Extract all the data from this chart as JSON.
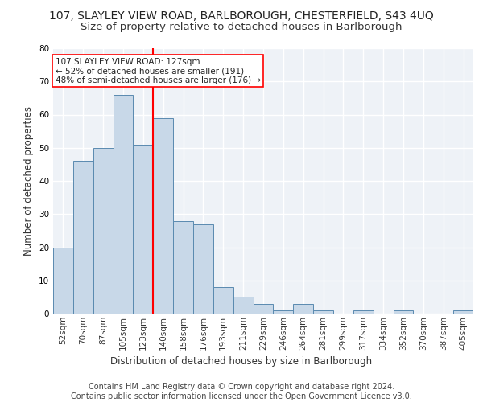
{
  "title1": "107, SLAYLEY VIEW ROAD, BARLBOROUGH, CHESTERFIELD, S43 4UQ",
  "title2": "Size of property relative to detached houses in Barlborough",
  "xlabel": "Distribution of detached houses by size in Barlborough",
  "ylabel": "Number of detached properties",
  "footer": "Contains HM Land Registry data © Crown copyright and database right 2024.\nContains public sector information licensed under the Open Government Licence v3.0.",
  "bar_labels": [
    "52sqm",
    "70sqm",
    "87sqm",
    "105sqm",
    "123sqm",
    "140sqm",
    "158sqm",
    "176sqm",
    "193sqm",
    "211sqm",
    "229sqm",
    "246sqm",
    "264sqm",
    "281sqm",
    "299sqm",
    "317sqm",
    "334sqm",
    "352sqm",
    "370sqm",
    "387sqm",
    "405sqm"
  ],
  "bar_values": [
    20,
    46,
    50,
    66,
    51,
    59,
    28,
    27,
    8,
    5,
    3,
    1,
    3,
    1,
    0,
    1,
    0,
    1,
    0,
    0,
    1
  ],
  "bar_color": "#c8d8e8",
  "bar_edge_color": "#5a8ab0",
  "vline_color": "red",
  "vline_x": 4.5,
  "annotation_text": "107 SLAYLEY VIEW ROAD: 127sqm\n← 52% of detached houses are smaller (191)\n48% of semi-detached houses are larger (176) →",
  "ylim": [
    0,
    80
  ],
  "yticks": [
    0,
    10,
    20,
    30,
    40,
    50,
    60,
    70,
    80
  ],
  "bg_color": "#eef2f7",
  "grid_color": "#ffffff",
  "title1_fontsize": 10,
  "title2_fontsize": 9.5,
  "axis_label_fontsize": 8.5,
  "tick_fontsize": 7.5,
  "footer_fontsize": 7,
  "annotation_fontsize": 7.5
}
